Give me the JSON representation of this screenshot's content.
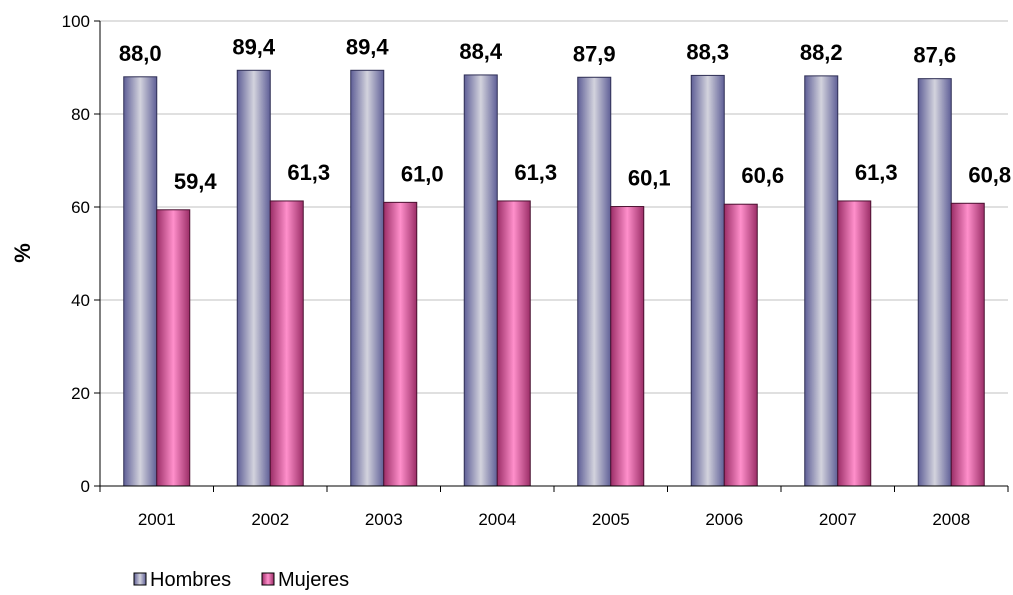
{
  "chart_data": {
    "type": "bar",
    "categories": [
      "2001",
      "2002",
      "2003",
      "2004",
      "2005",
      "2006",
      "2007",
      "2008"
    ],
    "series": [
      {
        "name": "Hombres",
        "values": [
          88.0,
          89.4,
          89.4,
          88.4,
          87.9,
          88.3,
          88.2,
          87.6
        ],
        "labels": [
          "88,0",
          "89,4",
          "89,4",
          "88,4",
          "87,9",
          "88,3",
          "88,2",
          "87,6"
        ],
        "color": "#6E6EA6"
      },
      {
        "name": "Mujeres",
        "values": [
          59.4,
          61.3,
          61.0,
          61.3,
          60.1,
          60.6,
          61.3,
          60.8
        ],
        "labels": [
          "59,4",
          "61,3",
          "61,0",
          "61,3",
          "60,1",
          "60,6",
          "61,3",
          "60,8"
        ],
        "color": "#A23870"
      }
    ],
    "ylabel": "%",
    "xlabel": "",
    "title": "",
    "ylim": [
      0,
      100
    ],
    "yticks": [
      "0",
      "20",
      "40",
      "60",
      "80",
      "100"
    ],
    "grid": true,
    "legend_position": "bottom-left"
  }
}
